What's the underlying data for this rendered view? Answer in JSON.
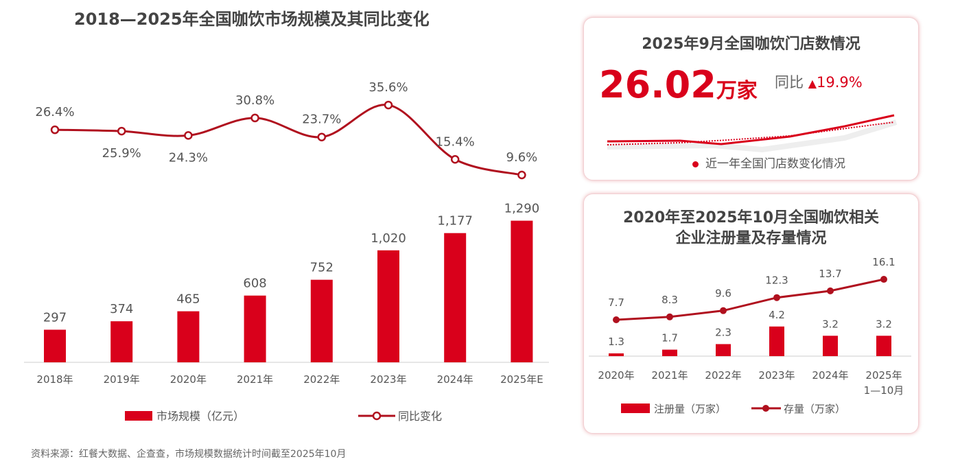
{
  "colors": {
    "accent": "#d9001b",
    "dark_red": "#b0101e",
    "text": "#555555",
    "title": "#444444"
  },
  "chart_data": [
    {
      "type": "bar+line",
      "title": "2018—2025年全国咖饮市场规模及其同比变化",
      "categories": [
        "2018年",
        "2019年",
        "2020年",
        "2021年",
        "2022年",
        "2023年",
        "2024年",
        "2025年E"
      ],
      "series": [
        {
          "name": "市场规模（亿元）",
          "type": "bar",
          "values": [
            297,
            374,
            465,
            608,
            752,
            1020,
            1177,
            1290
          ],
          "labels": [
            "297",
            "374",
            "465",
            "608",
            "752",
            "1,020",
            "1,177",
            "1,290"
          ]
        },
        {
          "name": "同比变化",
          "type": "line",
          "values": [
            26.4,
            25.9,
            24.3,
            30.8,
            23.7,
            35.6,
            15.4,
            9.6
          ],
          "labels": [
            "26.4%",
            "25.9%",
            "24.3%",
            "30.8%",
            "23.7%",
            "35.6%",
            "15.4%",
            "9.6%"
          ]
        }
      ],
      "legend": "bottom",
      "grid": false
    },
    {
      "type": "bar+line",
      "title": "2020年至2025年10月全国咖饮相关企业注册量及存量情况",
      "title_lines": [
        "2020年至2025年10月全国咖饮相关",
        "企业注册量及存量情况"
      ],
      "categories": [
        "2020年",
        "2021年",
        "2022年",
        "2023年",
        "2024年",
        "2025年 1—10月"
      ],
      "category_lines": [
        [
          "2020年"
        ],
        [
          "2021年"
        ],
        [
          "2022年"
        ],
        [
          "2023年"
        ],
        [
          "2024年"
        ],
        [
          "2025年",
          "1—10月"
        ]
      ],
      "series": [
        {
          "name": "注册量（万家）",
          "type": "bar",
          "values": [
            1.3,
            1.7,
            2.3,
            4.2,
            3.2,
            3.2
          ]
        },
        {
          "name": "存量（万家）",
          "type": "line",
          "values": [
            7.7,
            8.3,
            9.6,
            12.3,
            13.7,
            16.1
          ]
        }
      ],
      "legend": "bottom",
      "grid": false
    }
  ],
  "store_card": {
    "title": "2025年9月全国咖饮门店数情况",
    "value": "26.02",
    "unit": "万家",
    "yoy_label": "同比",
    "yoy_value": "19.9%",
    "trend_legend": "近一年全国门店数变化情况"
  },
  "source": "资料来源：红餐大数据、企查查，市场规模数据统计时间截至2025年10月"
}
